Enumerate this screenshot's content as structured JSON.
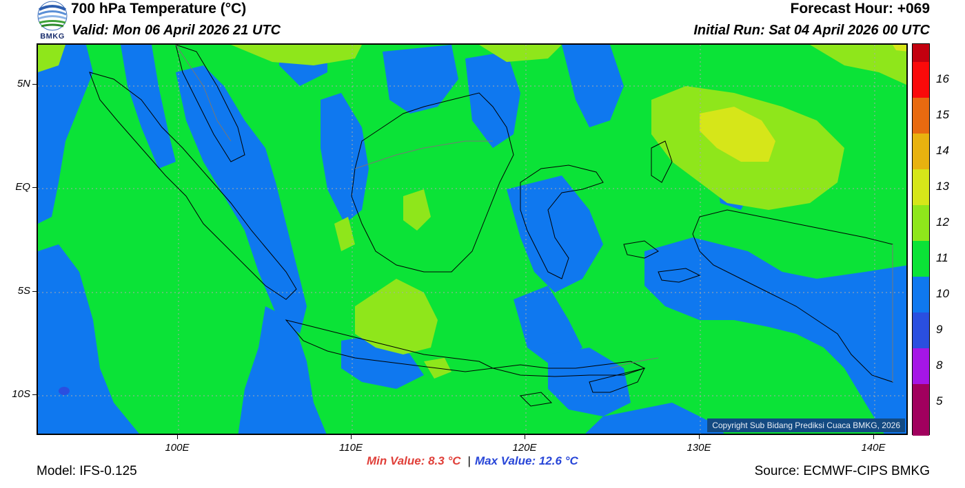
{
  "header": {
    "logo_text": "BMKG",
    "title": "700 hPa Temperature (°C)",
    "valid": "Valid: Mon 06 April 2026 21 UTC",
    "forecast_hour": "Forecast Hour: +069",
    "initial_run": "Initial Run: Sat 04 April 2026 00 UTC"
  },
  "map": {
    "lat_labels": [
      "5N",
      "EQ",
      "5S",
      "10S"
    ],
    "lon_labels": [
      "100E",
      "110E",
      "120E",
      "130E",
      "140E"
    ],
    "copyright": "Copyright Sub Bidang Prediksi Cuaca BMKG, 2026",
    "fields": {
      "cool_9_10": "#0f78ef",
      "mild_10_11": "#0be337",
      "warm_11_12": "#8fe61b",
      "hot_12_13": "#d6e619"
    }
  },
  "colorbar": {
    "labels": [
      "16",
      "15",
      "14",
      "13",
      "12",
      "11",
      "10",
      "9",
      "8",
      "5"
    ],
    "colors": [
      "#c3000f",
      "#fa0a0a",
      "#e86a10",
      "#e8b20f",
      "#d6e619",
      "#8fe61b",
      "#0be337",
      "#0f78ef",
      "#2a4fe0",
      "#a516e6",
      "#a1005e"
    ]
  },
  "footer": {
    "model": "Model: IFS-0.125",
    "min_value": "Min Value: 8.3 °C",
    "separator": "|",
    "max_value": "Max Value: 12.6 °C",
    "source": "Source: ECMWF-CIPS BMKG"
  }
}
